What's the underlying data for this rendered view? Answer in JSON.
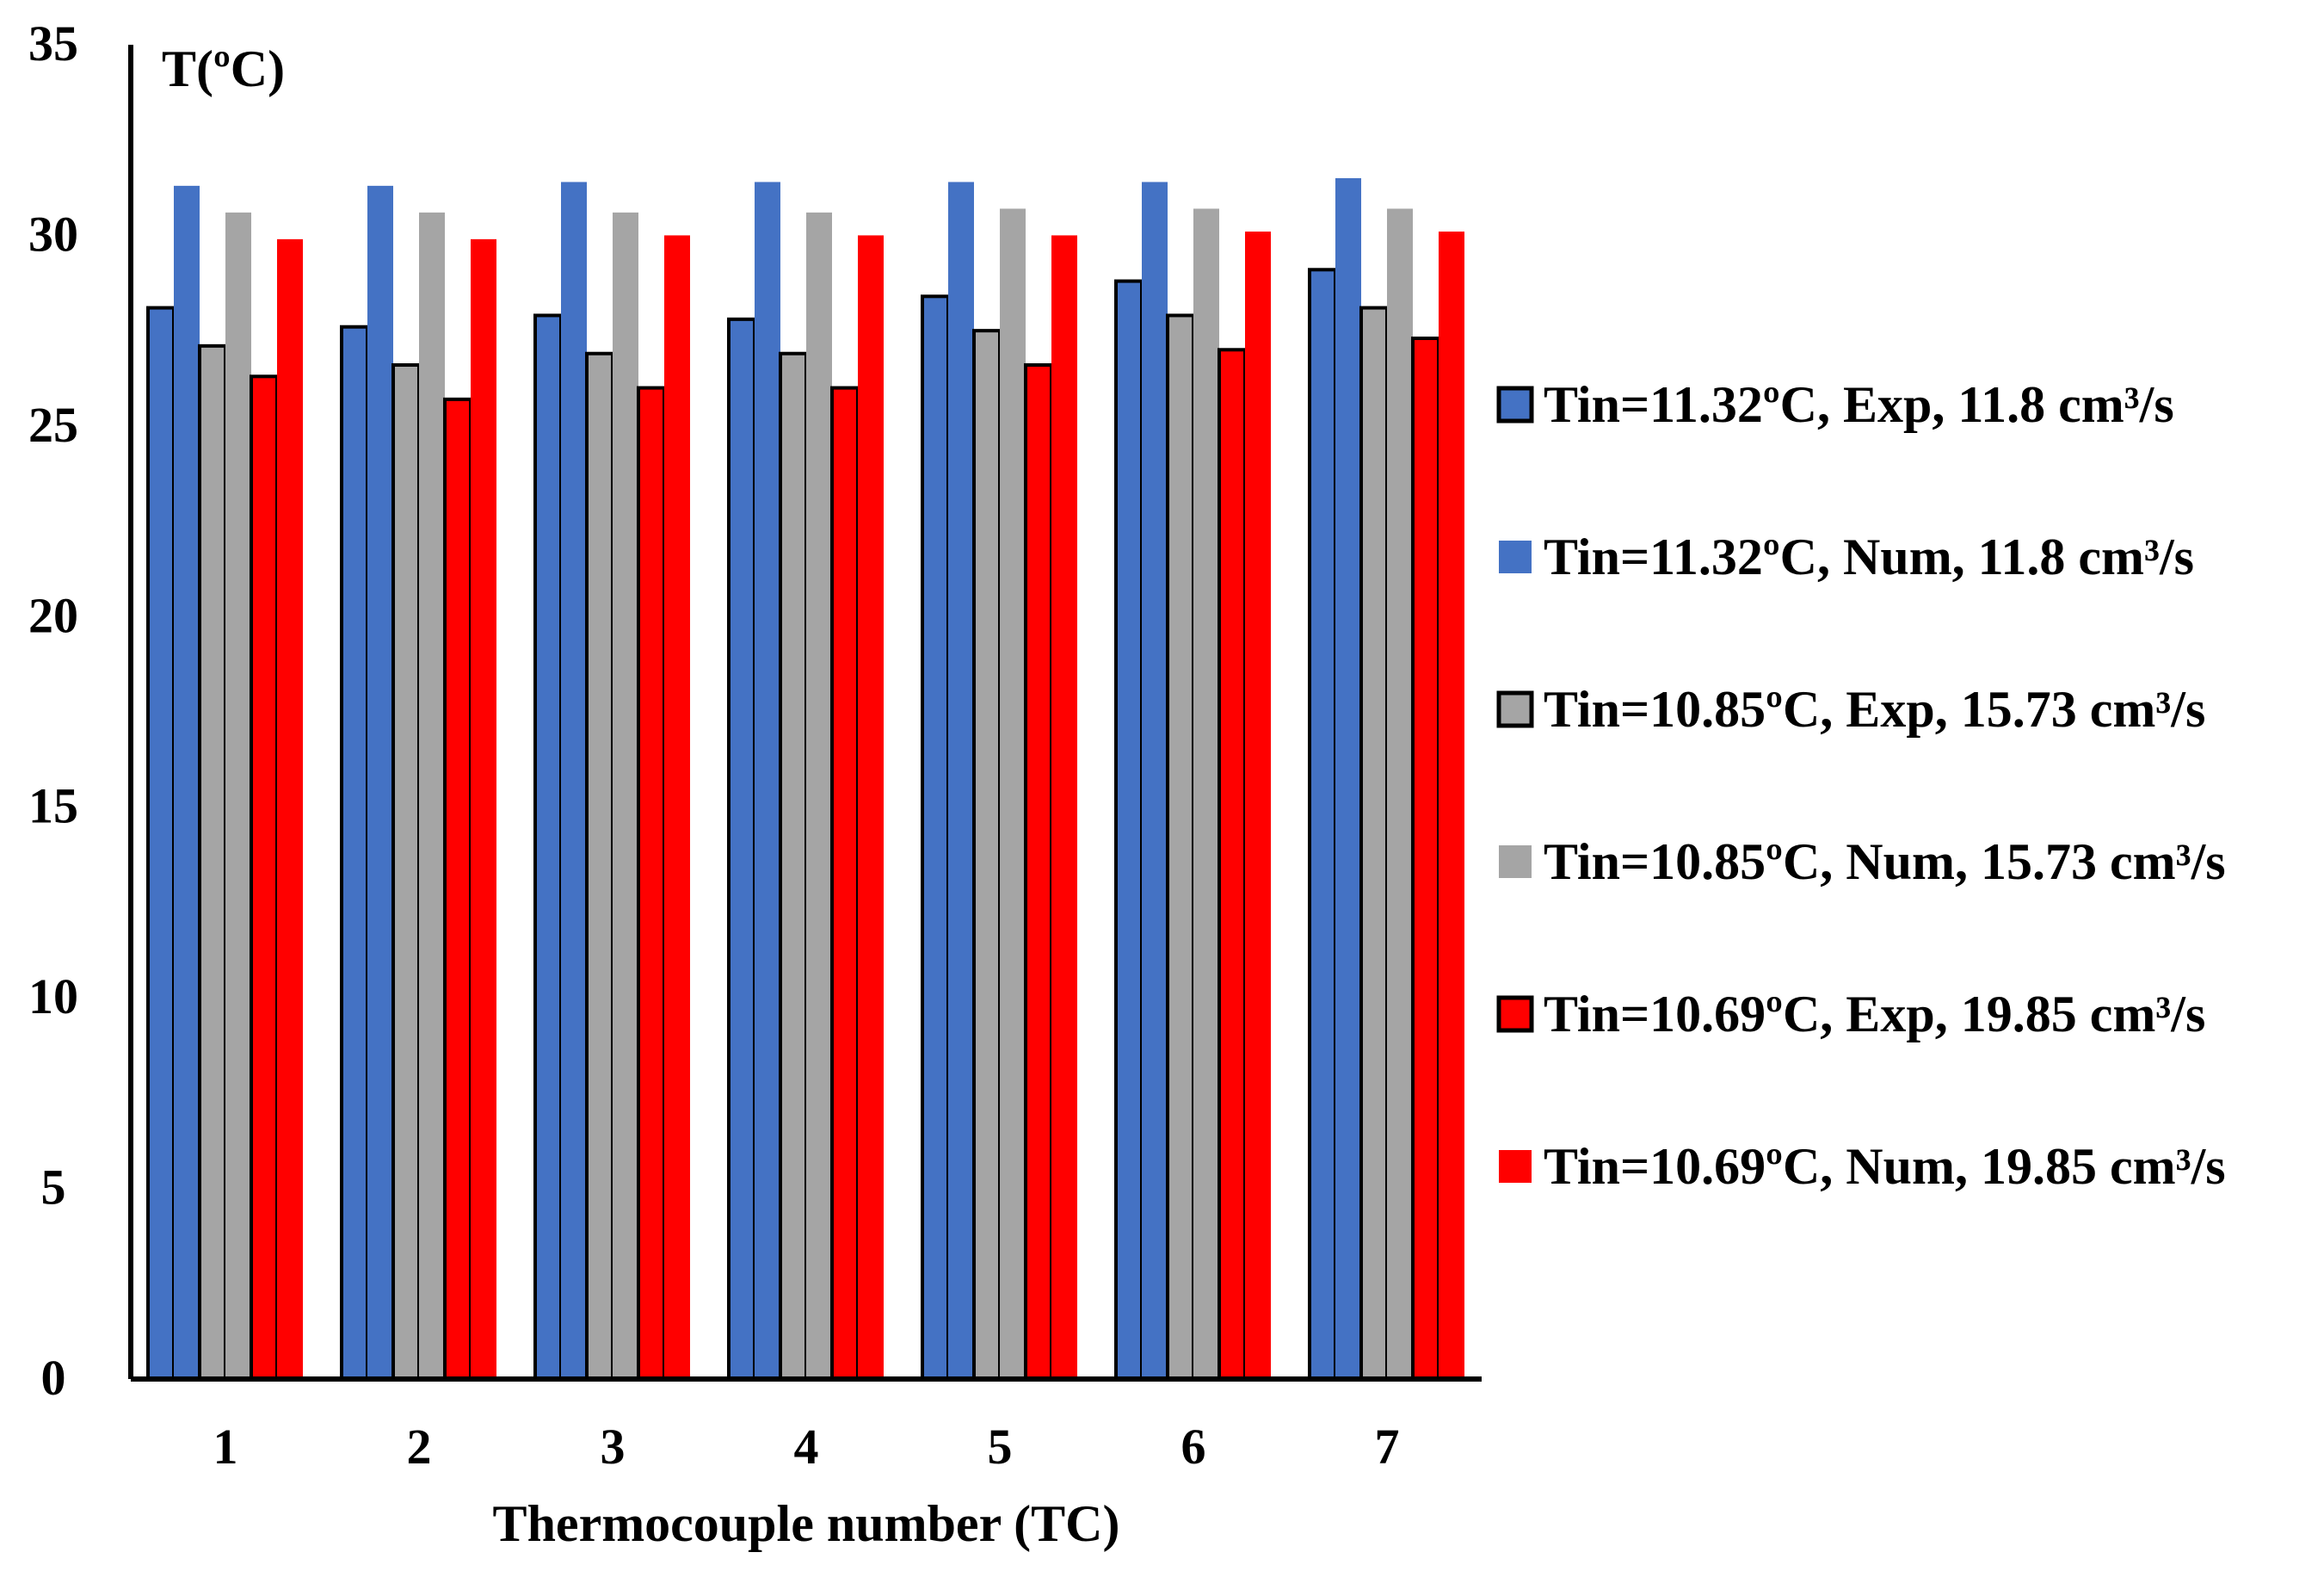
{
  "chart_data": {
    "type": "bar",
    "title": "",
    "ylabel": "T(ºC)",
    "xlabel": "Thermocouple number (TC)",
    "ylim": [
      0,
      35
    ],
    "yticks": [
      0,
      5,
      10,
      15,
      20,
      25,
      30,
      35
    ],
    "categories": [
      "1",
      "2",
      "3",
      "4",
      "5",
      "6",
      "7"
    ],
    "grid": false,
    "legend_position": "right",
    "series": [
      {
        "name": "Tin=11.32ºC, Exp, 11.8 cm³/s",
        "color": "#4472C4",
        "outlined": true,
        "values": [
          28.1,
          27.6,
          27.9,
          27.8,
          28.4,
          28.8,
          29.1
        ]
      },
      {
        "name": "Tin=11.32ºC, Num, 11.8 cm³/s",
        "color": "#4472C4",
        "outlined": false,
        "values": [
          31.3,
          31.3,
          31.4,
          31.4,
          31.4,
          31.4,
          31.5
        ]
      },
      {
        "name": "Tin=10.85ºC, Exp, 15.73 cm³/s",
        "color": "#A5A5A5",
        "outlined": true,
        "values": [
          27.1,
          26.6,
          26.9,
          26.9,
          27.5,
          27.9,
          28.1
        ]
      },
      {
        "name": "Tin=10.85ºC, Num, 15.73 cm³/s",
        "color": "#A5A5A5",
        "outlined": false,
        "values": [
          30.6,
          30.6,
          30.6,
          30.6,
          30.7,
          30.7,
          30.7
        ]
      },
      {
        "name": "Tin=10.69ºC, Exp, 19.85 cm³/s",
        "color": "#FF0000",
        "outlined": true,
        "values": [
          26.3,
          25.7,
          26.0,
          26.0,
          26.6,
          27.0,
          27.3
        ]
      },
      {
        "name": "Tin=10.69ºC, Num, 19.85 cm³/s",
        "color": "#FF0000",
        "outlined": false,
        "values": [
          29.9,
          29.9,
          30.0,
          30.0,
          30.0,
          30.1,
          30.1
        ]
      }
    ]
  }
}
